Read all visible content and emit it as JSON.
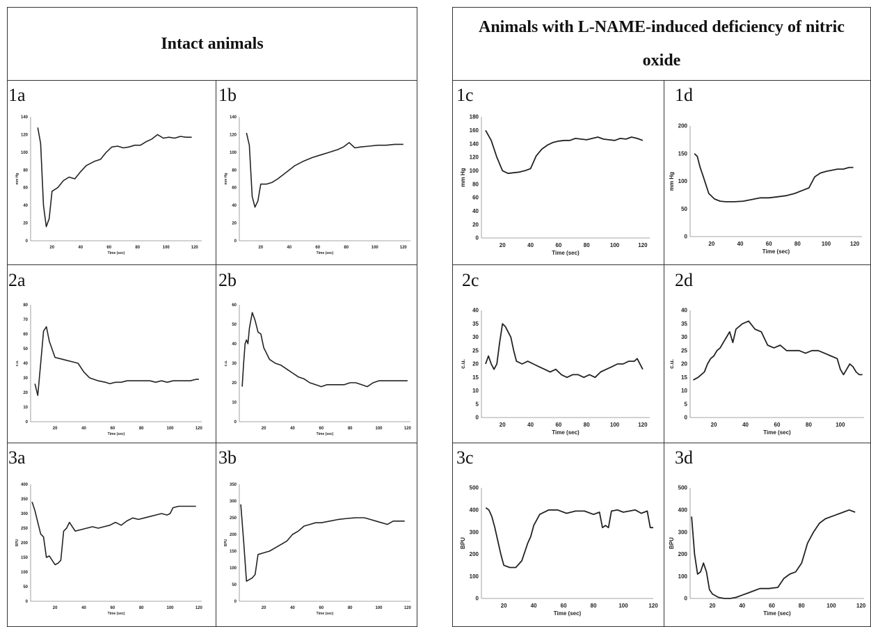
{
  "headers": {
    "left": "Intact animals",
    "right": "Animals with L-NAME-induced deficiency of nitric oxide"
  },
  "chart_data": [
    {
      "id": "1a",
      "type": "line",
      "ylabel": "mm Hg",
      "xlabel": "Time (sec)",
      "xlim": [
        5,
        125
      ],
      "ylim": [
        0,
        140
      ],
      "yticks": [
        0,
        20,
        40,
        60,
        80,
        100,
        120,
        140
      ],
      "xticks": [
        20,
        40,
        60,
        80,
        100,
        120
      ],
      "x": [
        10,
        12,
        14,
        16,
        18,
        20,
        24,
        28,
        32,
        36,
        40,
        44,
        50,
        54,
        58,
        62,
        66,
        70,
        74,
        78,
        82,
        86,
        90,
        94,
        98,
        102,
        106,
        110,
        114,
        118
      ],
      "y": [
        128,
        110,
        40,
        16,
        25,
        56,
        60,
        68,
        72,
        70,
        78,
        85,
        90,
        92,
        100,
        106,
        107,
        105,
        106,
        108,
        108,
        112,
        115,
        120,
        116,
        117,
        116,
        118,
        117,
        117
      ]
    },
    {
      "id": "1b",
      "type": "line",
      "ylabel": "mm Hg",
      "xlabel": "Time (sec)",
      "xlim": [
        5,
        125
      ],
      "ylim": [
        0,
        140
      ],
      "yticks": [
        0,
        20,
        40,
        60,
        80,
        100,
        120,
        140
      ],
      "xticks": [
        20,
        40,
        60,
        80,
        100,
        120
      ],
      "x": [
        10,
        12,
        14,
        16,
        18,
        20,
        24,
        28,
        32,
        36,
        40,
        44,
        50,
        56,
        62,
        68,
        74,
        78,
        82,
        86,
        90,
        96,
        102,
        108,
        114,
        120
      ],
      "y": [
        122,
        108,
        50,
        38,
        45,
        64,
        64,
        66,
        70,
        75,
        80,
        85,
        90,
        94,
        97,
        100,
        103,
        106,
        111,
        105,
        106,
        107,
        108,
        108,
        109,
        109
      ]
    },
    {
      "id": "1c",
      "type": "line",
      "ylabel": "mm Hg",
      "xlabel": "Time (sec)",
      "xlim": [
        5,
        125
      ],
      "ylim": [
        0,
        180
      ],
      "yticks": [
        0,
        20,
        40,
        60,
        80,
        100,
        120,
        140,
        160,
        180
      ],
      "xticks": [
        20,
        40,
        60,
        80,
        100,
        120
      ],
      "x": [
        8,
        12,
        16,
        20,
        24,
        28,
        32,
        36,
        40,
        44,
        48,
        52,
        56,
        60,
        64,
        68,
        72,
        76,
        80,
        84,
        88,
        92,
        96,
        100,
        104,
        108,
        112,
        116,
        120
      ],
      "y": [
        160,
        145,
        120,
        100,
        96,
        97,
        98,
        100,
        103,
        122,
        132,
        138,
        142,
        144,
        145,
        145,
        148,
        147,
        146,
        148,
        150,
        147,
        146,
        145,
        148,
        147,
        150,
        148,
        145
      ]
    },
    {
      "id": "1d",
      "type": "line",
      "ylabel": "mm Hg",
      "xlabel": "Time (sec)",
      "xlim": [
        5,
        125
      ],
      "ylim": [
        0,
        200
      ],
      "yticks": [
        0,
        50,
        100,
        150,
        200
      ],
      "xticks": [
        20,
        40,
        60,
        80,
        100,
        120
      ],
      "x": [
        8,
        10,
        12,
        14,
        18,
        22,
        26,
        30,
        36,
        42,
        48,
        54,
        60,
        66,
        72,
        78,
        84,
        88,
        92,
        96,
        100,
        104,
        108,
        112,
        116,
        119
      ],
      "y": [
        150,
        145,
        125,
        110,
        78,
        68,
        64,
        63,
        63,
        64,
        67,
        70,
        70,
        72,
        74,
        78,
        84,
        88,
        108,
        115,
        118,
        120,
        122,
        122,
        125,
        125
      ]
    },
    {
      "id": "2a",
      "type": "line",
      "ylabel": "c.u.",
      "xlabel": "Time (sec)",
      "xlim": [
        3,
        122
      ],
      "ylim": [
        0,
        80
      ],
      "yticks": [
        0,
        10,
        20,
        30,
        40,
        50,
        60,
        70,
        80
      ],
      "xticks": [
        20,
        40,
        60,
        80,
        100,
        120
      ],
      "x": [
        6,
        8,
        10,
        12,
        14,
        16,
        20,
        24,
        28,
        32,
        36,
        40,
        44,
        50,
        55,
        58,
        62,
        66,
        70,
        74,
        78,
        82,
        86,
        90,
        94,
        98,
        102,
        106,
        110,
        114,
        118,
        120
      ],
      "y": [
        26,
        18,
        40,
        62,
        65,
        55,
        44,
        43,
        42,
        41,
        40,
        34,
        30,
        28,
        27,
        26,
        27,
        27,
        28,
        28,
        28,
        28,
        28,
        27,
        28,
        27,
        28,
        28,
        28,
        28,
        29,
        29
      ]
    },
    {
      "id": "2b",
      "type": "line",
      "ylabel": "c.u.",
      "xlabel": "Time (sec)",
      "xlim": [
        3,
        122
      ],
      "ylim": [
        0,
        60
      ],
      "yticks": [
        0,
        10,
        20,
        30,
        40,
        50,
        60
      ],
      "xticks": [
        20,
        40,
        60,
        80,
        100,
        120
      ],
      "x": [
        5,
        6,
        7,
        8,
        9,
        10,
        12,
        14,
        16,
        18,
        20,
        24,
        28,
        32,
        36,
        40,
        44,
        48,
        52,
        56,
        60,
        64,
        70,
        76,
        80,
        84,
        88,
        92,
        96,
        100,
        106,
        112,
        118,
        120
      ],
      "y": [
        18,
        30,
        40,
        42,
        40,
        48,
        56,
        52,
        46,
        45,
        38,
        32,
        30,
        29,
        27,
        25,
        23,
        22,
        20,
        19,
        18,
        19,
        19,
        19,
        20,
        20,
        19,
        18,
        20,
        21,
        21,
        21,
        21,
        21
      ]
    },
    {
      "id": "2c",
      "type": "line",
      "ylabel": "c.u.",
      "xlabel": "Time (sec)",
      "xlim": [
        5,
        125
      ],
      "ylim": [
        0,
        40
      ],
      "yticks": [
        0,
        5,
        10,
        15,
        20,
        25,
        30,
        35,
        40
      ],
      "xticks": [
        20,
        40,
        60,
        80,
        100,
        120
      ],
      "x": [
        8,
        10,
        12,
        14,
        16,
        18,
        20,
        22,
        24,
        26,
        28,
        30,
        34,
        38,
        42,
        46,
        50,
        54,
        58,
        62,
        66,
        70,
        74,
        78,
        82,
        86,
        90,
        94,
        98,
        102,
        106,
        110,
        114,
        116,
        120
      ],
      "y": [
        20,
        23,
        20,
        18,
        20,
        28,
        35,
        34,
        32,
        30,
        25,
        21,
        20,
        21,
        20,
        19,
        18,
        17,
        18,
        16,
        15,
        16,
        16,
        15,
        16,
        15,
        17,
        18,
        19,
        20,
        20,
        21,
        21,
        22,
        18
      ]
    },
    {
      "id": "2d",
      "type": "line",
      "ylabel": "c.u.",
      "xlabel": "Time (sec)",
      "xlim": [
        5,
        115
      ],
      "ylim": [
        0,
        40
      ],
      "yticks": [
        0,
        5,
        10,
        15,
        20,
        25,
        30,
        35,
        40
      ],
      "xticks": [
        20,
        40,
        60,
        80,
        100
      ],
      "x": [
        7,
        10,
        12,
        14,
        16,
        18,
        20,
        22,
        24,
        26,
        28,
        30,
        32,
        34,
        38,
        42,
        46,
        50,
        54,
        58,
        62,
        66,
        70,
        74,
        78,
        82,
        86,
        90,
        94,
        98,
        100,
        102,
        104,
        106,
        108,
        110,
        112,
        114
      ],
      "y": [
        14,
        15,
        16,
        17,
        20,
        22,
        23,
        25,
        26,
        28,
        30,
        32,
        28,
        33,
        35,
        36,
        33,
        32,
        27,
        26,
        27,
        25,
        25,
        25,
        24,
        25,
        25,
        24,
        23,
        22,
        18,
        16,
        18,
        20,
        19,
        17,
        16,
        16
      ]
    },
    {
      "id": "3a",
      "type": "line",
      "ylabel": "BPU",
      "xlabel": "Time (sec)",
      "xlim": [
        3,
        122
      ],
      "ylim": [
        0,
        400
      ],
      "yticks": [
        0,
        50,
        100,
        150,
        200,
        250,
        300,
        350,
        400
      ],
      "xticks": [
        20,
        40,
        60,
        80,
        100,
        120
      ],
      "x": [
        4,
        6,
        8,
        10,
        12,
        14,
        16,
        18,
        20,
        22,
        24,
        26,
        28,
        30,
        34,
        38,
        42,
        46,
        50,
        54,
        58,
        62,
        66,
        70,
        74,
        78,
        82,
        86,
        90,
        94,
        98,
        100,
        102,
        106,
        110,
        114,
        118
      ],
      "y": [
        340,
        310,
        270,
        230,
        220,
        150,
        155,
        140,
        125,
        130,
        140,
        240,
        250,
        270,
        240,
        245,
        250,
        255,
        250,
        255,
        260,
        270,
        260,
        275,
        285,
        280,
        285,
        290,
        295,
        300,
        295,
        300,
        320,
        325,
        325,
        325,
        325
      ]
    },
    {
      "id": "3b",
      "type": "line",
      "ylabel": "BPU",
      "xlabel": "Time (sec)",
      "xlim": [
        3,
        122
      ],
      "ylim": [
        0,
        350
      ],
      "yticks": [
        0,
        50,
        100,
        150,
        200,
        250,
        300,
        350
      ],
      "xticks": [
        20,
        40,
        60,
        80,
        100,
        120
      ],
      "x": [
        4,
        6,
        8,
        10,
        12,
        14,
        16,
        20,
        24,
        28,
        32,
        36,
        40,
        44,
        48,
        52,
        56,
        60,
        66,
        72,
        78,
        84,
        90,
        94,
        98,
        102,
        106,
        110,
        114,
        118
      ],
      "y": [
        290,
        180,
        60,
        65,
        70,
        80,
        140,
        145,
        150,
        160,
        170,
        180,
        200,
        210,
        225,
        230,
        235,
        235,
        240,
        245,
        248,
        250,
        250,
        245,
        240,
        235,
        230,
        240,
        240,
        240
      ]
    },
    {
      "id": "3c",
      "type": "line",
      "ylabel": "BPU",
      "xlabel": "Time (sec)",
      "xlim": [
        5,
        120
      ],
      "ylim": [
        0,
        500
      ],
      "yticks": [
        0,
        100,
        200,
        300,
        400,
        500
      ],
      "xticks": [
        20,
        40,
        60,
        80,
        100,
        120
      ],
      "x": [
        8,
        10,
        12,
        14,
        16,
        18,
        20,
        24,
        28,
        32,
        36,
        38,
        40,
        44,
        50,
        56,
        62,
        68,
        74,
        80,
        84,
        86,
        88,
        90,
        92,
        96,
        100,
        104,
        108,
        112,
        116,
        118,
        120
      ],
      "y": [
        410,
        400,
        370,
        320,
        260,
        200,
        150,
        140,
        140,
        170,
        250,
        280,
        330,
        380,
        400,
        400,
        385,
        395,
        395,
        380,
        390,
        320,
        330,
        320,
        395,
        400,
        390,
        395,
        400,
        385,
        395,
        320,
        320
      ]
    },
    {
      "id": "3d",
      "type": "line",
      "ylabel": "BPU",
      "xlabel": "Time (sec)",
      "xlim": [
        5,
        122
      ],
      "ylim": [
        0,
        500
      ],
      "yticks": [
        0,
        100,
        200,
        300,
        400,
        500
      ],
      "xticks": [
        20,
        40,
        60,
        80,
        100,
        120
      ],
      "x": [
        6,
        8,
        10,
        12,
        14,
        16,
        18,
        20,
        24,
        28,
        32,
        36,
        40,
        44,
        48,
        52,
        58,
        64,
        68,
        72,
        76,
        80,
        84,
        88,
        92,
        96,
        100,
        104,
        108,
        112,
        116
      ],
      "y": [
        370,
        200,
        110,
        120,
        160,
        120,
        40,
        20,
        5,
        0,
        0,
        5,
        15,
        25,
        35,
        45,
        45,
        50,
        90,
        110,
        120,
        160,
        250,
        300,
        340,
        360,
        370,
        380,
        390,
        400,
        390
      ]
    }
  ]
}
